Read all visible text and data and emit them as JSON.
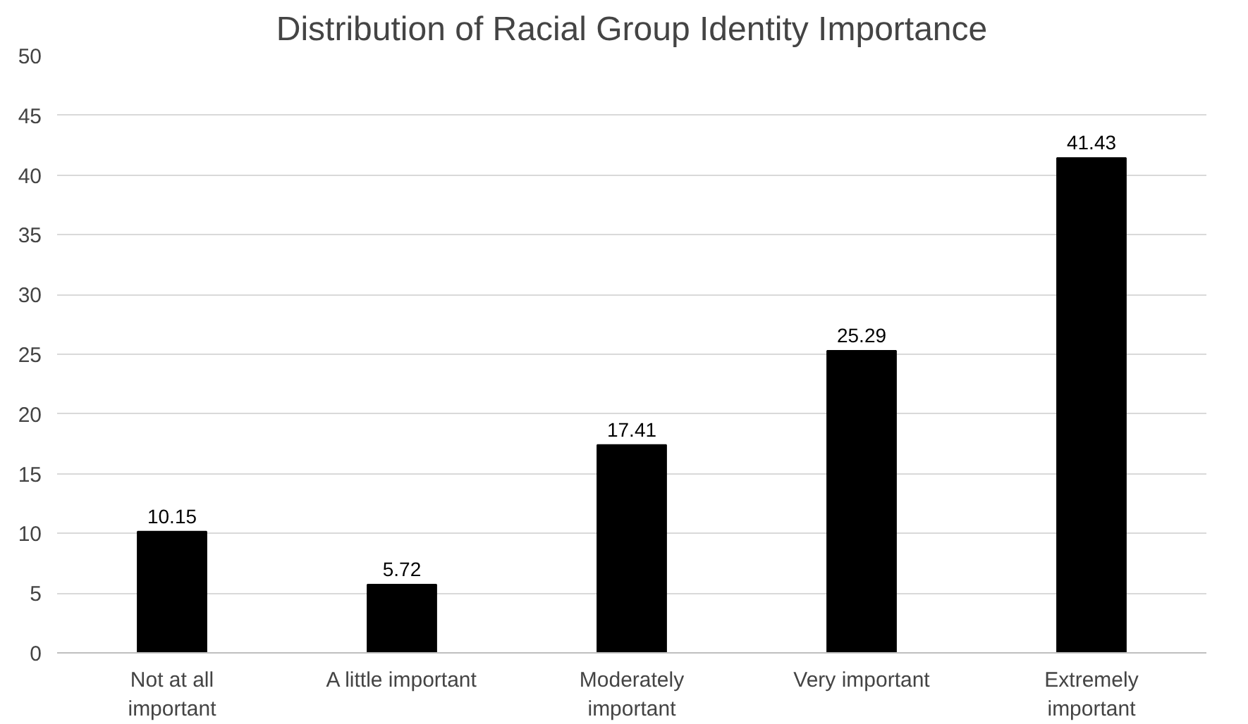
{
  "chart_data": {
    "type": "bar",
    "title": "Distribution of Racial Group Identity Importance",
    "categories": [
      "Not at all important",
      "A little important",
      "Moderately important",
      "Very important",
      "Extremely important"
    ],
    "values": [
      10.15,
      5.72,
      17.41,
      25.29,
      41.43
    ],
    "color": "#000000",
    "ylim": [
      0,
      50
    ],
    "yticks": [
      0,
      5,
      10,
      15,
      20,
      25,
      30,
      35,
      40,
      45,
      50
    ],
    "grid": "y",
    "data_labels": true
  }
}
